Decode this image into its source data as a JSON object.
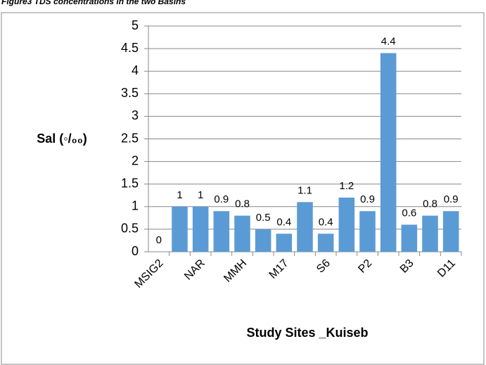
{
  "chart_data": {
    "type": "bar",
    "title": "Figure3 TDS concentrations in the two Basins",
    "x_label": "Study Sites _Kuiseb",
    "y_label": "Sal (◦/₀₀)",
    "categories": [
      "MSIG2",
      null,
      "NAR",
      null,
      "MMH",
      null,
      "M17",
      null,
      "S6",
      null,
      "P2",
      null,
      "B3",
      null,
      "D11"
    ],
    "values": [
      0,
      1,
      1,
      0.9,
      0.8,
      0.5,
      0.4,
      1.1,
      0.4,
      1.2,
      0.9,
      4.4,
      0.6,
      0.8,
      0.9
    ],
    "color": "#5b9bd5",
    "ylim": [
      0,
      5
    ],
    "yticks": [
      0,
      0.5,
      1,
      1.5,
      2,
      2.5,
      3,
      3.5,
      4,
      4.5,
      5
    ],
    "grid": true
  }
}
